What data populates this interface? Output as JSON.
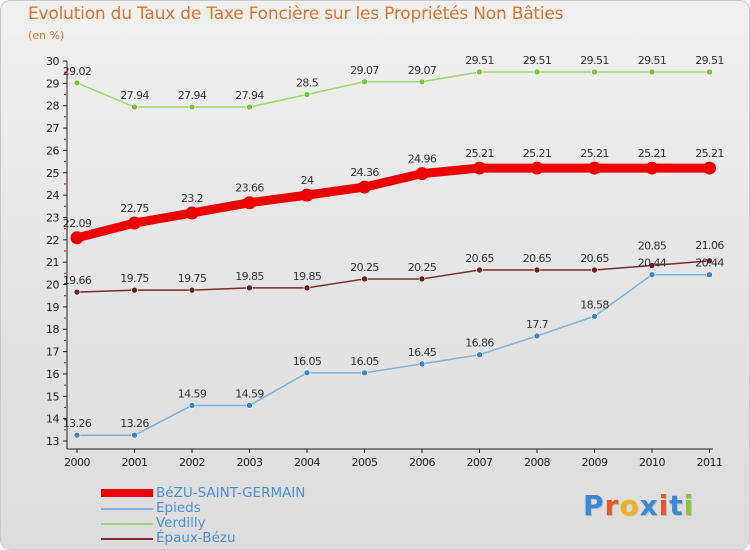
{
  "header": {
    "title": "Evolution du Taux de Taxe Foncière sur les Propriétés Non Bâties",
    "unit": "(en %)"
  },
  "chart_data": {
    "type": "line",
    "title": "Evolution du Taux de Taxe Foncière sur les Propriétés Non Bâties",
    "ylabel": "(en %)",
    "xlabel": "",
    "ylim": [
      13,
      30
    ],
    "yticks": [
      13,
      14,
      15,
      16,
      17,
      18,
      19,
      20,
      21,
      22,
      23,
      24,
      25,
      26,
      27,
      28,
      29,
      30
    ],
    "categories": [
      "2000",
      "2001",
      "2002",
      "2003",
      "2004",
      "2005",
      "2006",
      "2007",
      "2008",
      "2009",
      "2010",
      "2011"
    ],
    "grid": false,
    "legend_position": "bottom-left",
    "series": [
      {
        "name": "BéZU-SAINT-GERMAIN",
        "values": [
          22.09,
          22.75,
          23.2,
          23.66,
          24,
          24.36,
          24.96,
          25.21,
          25.21,
          25.21,
          25.21,
          25.21
        ],
        "labels": [
          "22.09",
          "22.75",
          "23.2",
          "23.66",
          "24",
          "24.36",
          "24.96",
          "25.21",
          "25.21",
          "25.21",
          "25.21",
          "25.21"
        ],
        "color": "#ee0000",
        "marker_color": "#ee0000",
        "thick": true
      },
      {
        "name": "Epieds",
        "values": [
          13.26,
          13.26,
          14.59,
          14.59,
          16.05,
          16.05,
          16.45,
          16.86,
          17.7,
          18.58,
          20.44,
          20.44
        ],
        "labels": [
          "13.26",
          "13.26",
          "14.59",
          "14.59",
          "16.05",
          "16.05",
          "16.45",
          "16.86",
          "17.7",
          "18.58",
          "20.44",
          "20.44"
        ],
        "color": "#7fb3dd",
        "marker_color": "#3e86c6",
        "thick": false
      },
      {
        "name": "Verdilly",
        "values": [
          29.02,
          27.94,
          27.94,
          27.94,
          28.5,
          29.07,
          29.07,
          29.51,
          29.51,
          29.51,
          29.51,
          29.51
        ],
        "labels": [
          "29.02",
          "27.94",
          "27.94",
          "27.94",
          "28.5",
          "29.07",
          "29.07",
          "29.51",
          "29.51",
          "29.51",
          "29.51",
          "29.51"
        ],
        "color": "#9fd870",
        "marker_color": "#78c63f",
        "thick": false
      },
      {
        "name": "Épaux-Bézu",
        "values": [
          19.66,
          19.75,
          19.75,
          19.85,
          19.85,
          20.25,
          20.25,
          20.65,
          20.65,
          20.65,
          20.85,
          21.06
        ],
        "labels": [
          "19.66",
          "19.75",
          "19.75",
          "19.85",
          "19.85",
          "20.25",
          "20.25",
          "20.65",
          "20.65",
          "20.65",
          "20.85",
          "21.06"
        ],
        "color": "#7a2b2b",
        "marker_color": "#6b1f1f",
        "thick": false
      }
    ]
  },
  "legend": {
    "items": [
      {
        "label": "BéZU-SAINT-GERMAIN",
        "color": "#ee0000"
      },
      {
        "label": "Epieds",
        "color": "#7fb3dd"
      },
      {
        "label": "Verdilly",
        "color": "#9fd870"
      },
      {
        "label": "Épaux-Bézu",
        "color": "#7a2b2b"
      }
    ]
  },
  "logo": {
    "text": "Proxiti",
    "letters": [
      "P",
      "r",
      "o",
      "x",
      "i",
      "t",
      "i"
    ],
    "colors": [
      "#3a88d6",
      "#e8562a",
      "#f2b01e",
      "#3a88d6",
      "#e8562a",
      "#3a88d6",
      "#8cc63f"
    ]
  },
  "colors": {
    "title": "#d9752f",
    "axis": "#222222",
    "tick_marks": "#cc0000",
    "legend_text": "#4a90d6"
  }
}
